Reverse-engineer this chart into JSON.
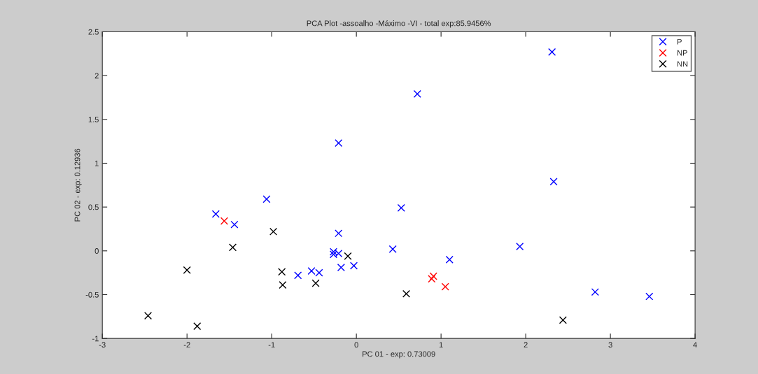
{
  "chart_data": {
    "type": "scatter",
    "title": "PCA Plot -assoalho -Máximo -VI - total exp:85.9456%",
    "xlabel": "PC 01 - exp: 0.73009",
    "ylabel": "PC 02 - exp: 0.12936",
    "xlim": [
      -3,
      4
    ],
    "xticks": [
      -3,
      -2,
      -1,
      0,
      1,
      2,
      3,
      4
    ],
    "ylim": [
      -1,
      2.5
    ],
    "yticks": [
      -1,
      -0.5,
      0,
      0.5,
      1,
      1.5,
      2,
      2.5
    ],
    "grid": false,
    "legend": "top right",
    "marker": "cross",
    "series": [
      {
        "name": "P",
        "color": "#0000ff",
        "x": [
          -1.66,
          -1.44,
          -1.06,
          -0.21,
          0.72,
          2.31,
          0.53,
          -0.21,
          -0.27,
          -0.27,
          -0.21,
          -0.18,
          -0.03,
          -0.69,
          -0.53,
          -0.44,
          0.43,
          1.1,
          1.93,
          2.33,
          2.82,
          3.46
        ],
        "values": [
          0.42,
          0.3,
          0.59,
          1.23,
          1.79,
          2.27,
          0.49,
          0.2,
          -0.01,
          -0.04,
          -0.03,
          -0.19,
          -0.17,
          -0.28,
          -0.23,
          -0.25,
          0.02,
          -0.1,
          0.05,
          0.79,
          -0.47,
          -0.52
        ]
      },
      {
        "name": "NP",
        "color": "#ff0000",
        "x": [
          -1.56,
          0.91,
          0.89,
          1.05
        ],
        "values": [
          0.34,
          -0.29,
          -0.32,
          -0.41
        ]
      },
      {
        "name": "NN",
        "color": "#000000",
        "x": [
          -2.46,
          -2.0,
          -1.88,
          -1.46,
          -0.98,
          -0.88,
          -0.87,
          -0.48,
          -0.1,
          0.59,
          2.44
        ],
        "values": [
          -0.74,
          -0.22,
          -0.86,
          0.04,
          0.22,
          -0.24,
          -0.39,
          -0.37,
          -0.06,
          -0.49,
          -0.79
        ]
      }
    ]
  }
}
